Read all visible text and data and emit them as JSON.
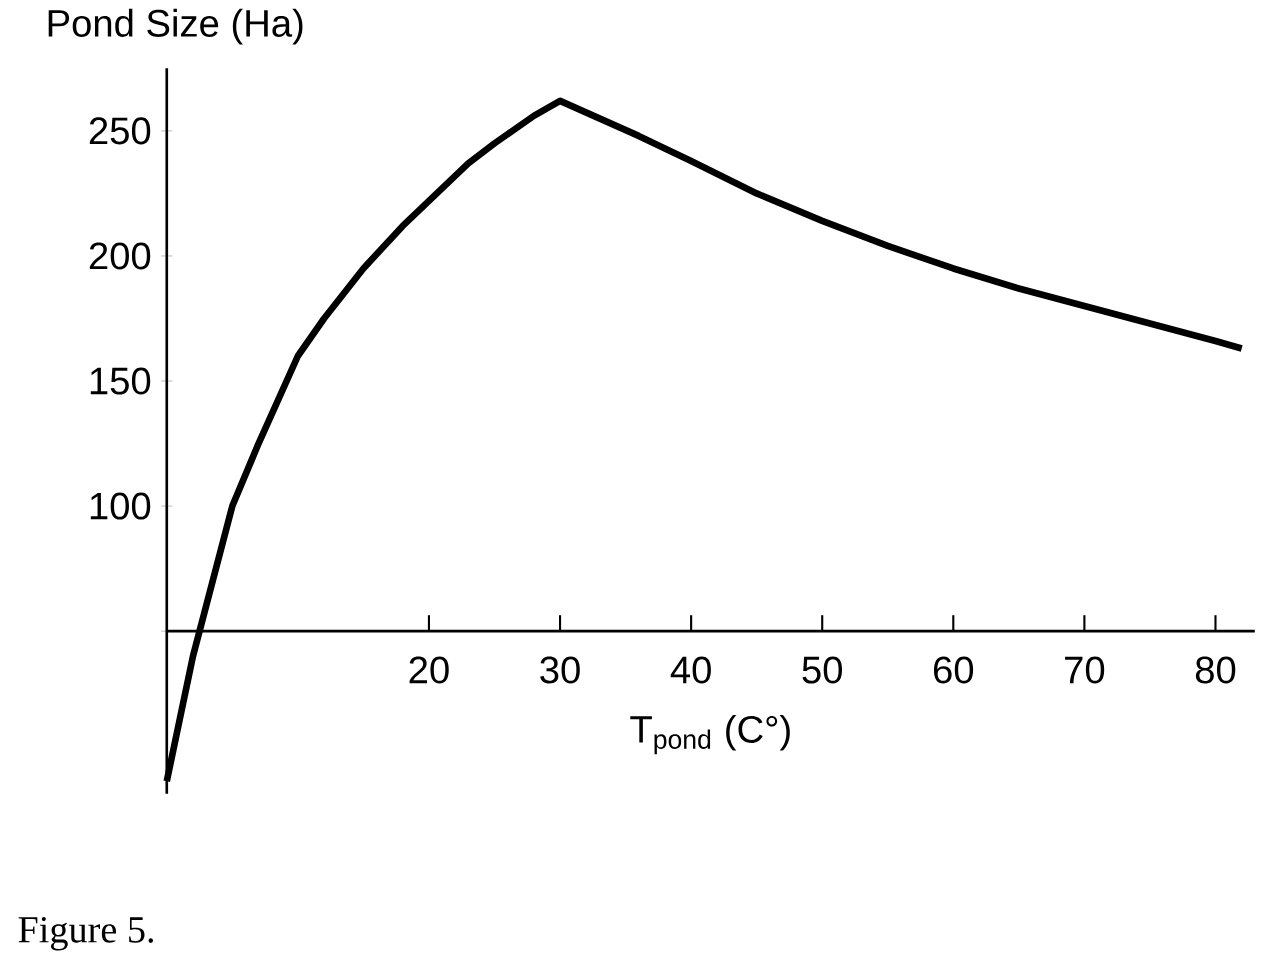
{
  "chart_data": {
    "type": "line",
    "xlabel": "T$_{pond}$ (C°)",
    "ylabel": "Pond Size (Ha)",
    "annotations": [
      "Figure 5."
    ],
    "x": [
      0,
      1,
      2,
      3,
      5,
      7,
      10,
      12,
      15,
      18,
      20,
      23,
      25,
      28,
      30,
      33,
      36,
      40,
      45,
      50,
      55,
      60,
      65,
      70,
      75,
      80,
      82
    ],
    "series": [
      {
        "color": "#000000",
        "values": [
          -10,
          15,
          40,
          60,
          100,
          125,
          160,
          175,
          195,
          212,
          222,
          237,
          245,
          256,
          262,
          255,
          248,
          238,
          225,
          214,
          204,
          195,
          187,
          180,
          173,
          166,
          163
        ]
      }
    ],
    "xlim": [
      0,
      83
    ],
    "ylim": [
      -15,
      275
    ],
    "xticks": [
      20,
      30,
      40,
      50,
      60,
      70,
      80
    ],
    "yticks": [
      {
        "value": 50,
        "label": null
      },
      100,
      150,
      200,
      250
    ],
    "grid": false,
    "marker": "none",
    "line_style": "solid"
  }
}
